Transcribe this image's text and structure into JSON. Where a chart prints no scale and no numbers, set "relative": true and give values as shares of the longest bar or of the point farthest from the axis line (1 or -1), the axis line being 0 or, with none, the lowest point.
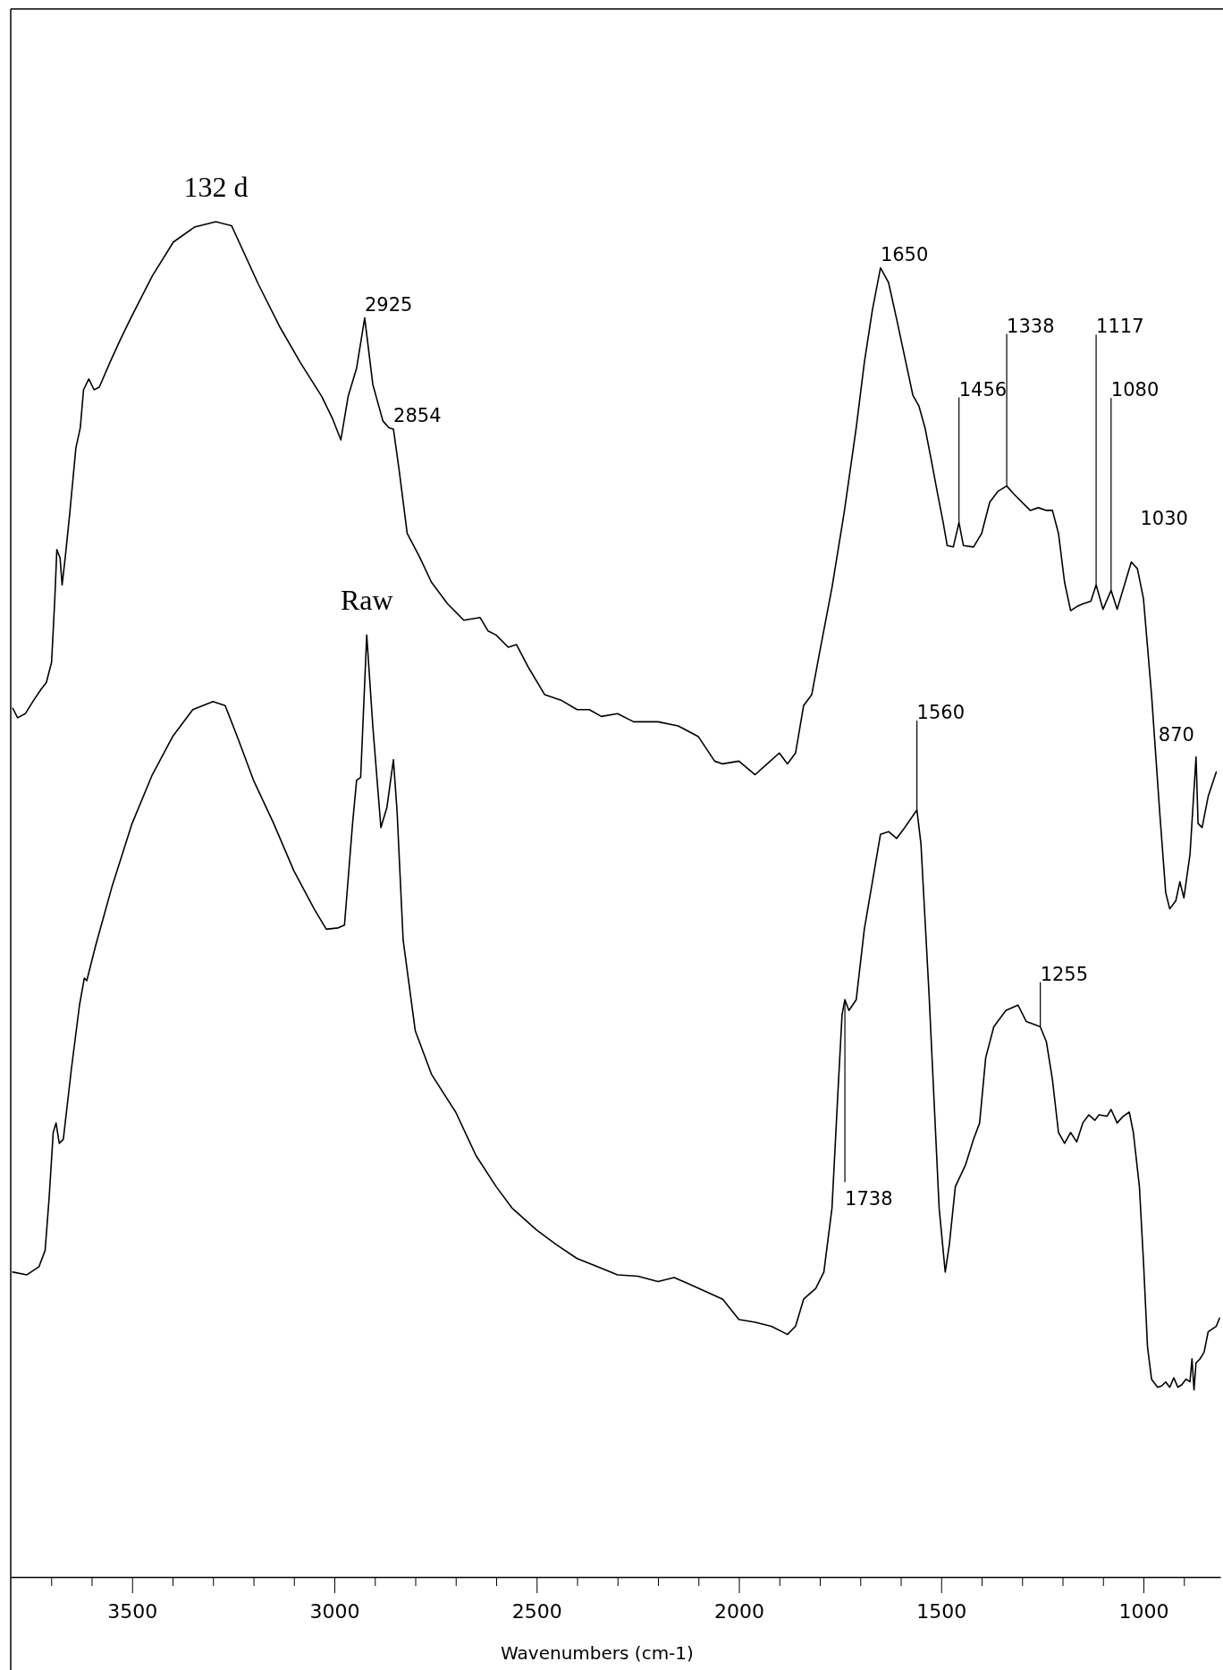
{
  "chart_data": {
    "type": "line",
    "relative": true,
    "xlabel": "Wavenumbers (cm-1)",
    "xlim": [
      3800,
      810
    ],
    "xticks": [
      {
        "value": 3700,
        "label": null
      },
      {
        "value": 3600,
        "label": null
      },
      3500,
      {
        "value": 3400,
        "label": null
      },
      {
        "value": 3300,
        "label": null
      },
      {
        "value": 3200,
        "label": null
      },
      {
        "value": 3100,
        "label": null
      },
      3000,
      {
        "value": 2900,
        "label": null
      },
      {
        "value": 2800,
        "label": null
      },
      {
        "value": 2700,
        "label": null
      },
      {
        "value": 2600,
        "label": null
      },
      2500,
      {
        "value": 2400,
        "label": null
      },
      {
        "value": 2300,
        "label": null
      },
      {
        "value": 2200,
        "label": null
      },
      {
        "value": 2100,
        "label": null
      },
      2000,
      {
        "value": 1900,
        "label": null
      },
      {
        "value": 1800,
        "label": null
      },
      {
        "value": 1700,
        "label": null
      },
      {
        "value": 1600,
        "label": null
      },
      1500,
      {
        "value": 1400,
        "label": null
      },
      {
        "value": 1300,
        "label": null
      },
      {
        "value": 1200,
        "label": null
      },
      {
        "value": 1100,
        "label": null
      },
      1000,
      {
        "value": 900,
        "label": null
      }
    ],
    "series": [
      {
        "name": "132 d",
        "color": "#000000",
        "x": [
          3795,
          3783,
          3764,
          3743,
          3725,
          3712,
          3699,
          3691,
          3686,
          3678,
          3673,
          3665,
          3654,
          3639,
          3628,
          3620,
          3607,
          3594,
          3581,
          3555,
          3529,
          3503,
          3450,
          3398,
          3346,
          3293,
          3254,
          3188,
          3136,
          3084,
          3031,
          3005,
          2984,
          2966,
          2945,
          2925,
          2905,
          2880,
          2865,
          2854,
          2840,
          2820,
          2790,
          2760,
          2720,
          2680,
          2640,
          2620,
          2600,
          2570,
          2550,
          2520,
          2480,
          2440,
          2400,
          2370,
          2340,
          2300,
          2260,
          2200,
          2150,
          2100,
          2060,
          2040,
          2000,
          1960,
          1930,
          1900,
          1880,
          1860,
          1840,
          1820,
          1800,
          1770,
          1740,
          1710,
          1690,
          1670,
          1650,
          1630,
          1610,
          1590,
          1570,
          1555,
          1540,
          1525,
          1510,
          1495,
          1485,
          1470,
          1456,
          1445,
          1420,
          1400,
          1380,
          1360,
          1338,
          1320,
          1300,
          1280,
          1260,
          1240,
          1225,
          1210,
          1195,
          1180,
          1165,
          1150,
          1130,
          1117,
          1100,
          1080,
          1065,
          1045,
          1030,
          1015,
          1000,
          980,
          960,
          945,
          935,
          920,
          910,
          900,
          885,
          870,
          865,
          855,
          840,
          820
        ],
        "values": [
          0.641,
          0.634,
          0.637,
          0.647,
          0.655,
          0.66,
          0.675,
          0.722,
          0.758,
          0.752,
          0.732,
          0.753,
          0.785,
          0.833,
          0.848,
          0.876,
          0.884,
          0.876,
          0.878,
          0.896,
          0.913,
          0.929,
          0.96,
          0.985,
          0.996,
          1,
          0.997,
          0.954,
          0.923,
          0.896,
          0.871,
          0.855,
          0.839,
          0.871,
          0.892,
          0.929,
          0.88,
          0.853,
          0.848,
          0.847,
          0.817,
          0.77,
          0.753,
          0.734,
          0.718,
          0.706,
          0.708,
          0.698,
          0.695,
          0.686,
          0.688,
          0.671,
          0.651,
          0.647,
          0.64,
          0.64,
          0.635,
          0.637,
          0.631,
          0.631,
          0.628,
          0.62,
          0.602,
          0.6,
          0.602,
          0.592,
          0.6,
          0.608,
          0.6,
          0.608,
          0.643,
          0.651,
          0.683,
          0.73,
          0.785,
          0.848,
          0.896,
          0.935,
          0.966,
          0.955,
          0.928,
          0.9,
          0.872,
          0.864,
          0.848,
          0.825,
          0.801,
          0.778,
          0.761,
          0.76,
          0.778,
          0.761,
          0.76,
          0.77,
          0.793,
          0.801,
          0.805,
          0.799,
          0.793,
          0.787,
          0.789,
          0.787,
          0.787,
          0.77,
          0.734,
          0.713,
          0.716,
          0.718,
          0.72,
          0.732,
          0.714,
          0.728,
          0.714,
          0.734,
          0.749,
          0.744,
          0.722,
          0.651,
          0.565,
          0.505,
          0.493,
          0.499,
          0.513,
          0.501,
          0.533,
          0.605,
          0.556,
          0.553,
          0.576,
          0.594
        ]
      },
      {
        "name": "Raw",
        "color": "#000000",
        "x": [
          3795,
          3760,
          3730,
          3715,
          3705,
          3695,
          3688,
          3680,
          3670,
          3650,
          3630,
          3618,
          3612,
          3590,
          3550,
          3500,
          3450,
          3400,
          3350,
          3300,
          3270,
          3240,
          3200,
          3150,
          3100,
          3050,
          3020,
          2990,
          2975,
          2955,
          2945,
          2935,
          2920,
          2905,
          2885,
          2870,
          2854,
          2845,
          2830,
          2800,
          2760,
          2700,
          2650,
          2600,
          2560,
          2500,
          2450,
          2400,
          2350,
          2300,
          2250,
          2200,
          2160,
          2100,
          2040,
          2000,
          1960,
          1920,
          1880,
          1860,
          1840,
          1810,
          1790,
          1770,
          1755,
          1745,
          1738,
          1728,
          1710,
          1690,
          1670,
          1650,
          1630,
          1610,
          1590,
          1560,
          1550,
          1530,
          1505,
          1490,
          1480,
          1465,
          1440,
          1420,
          1405,
          1390,
          1370,
          1340,
          1310,
          1290,
          1255,
          1240,
          1225,
          1210,
          1195,
          1180,
          1165,
          1150,
          1135,
          1120,
          1110,
          1090,
          1080,
          1065,
          1050,
          1035,
          1025,
          1010,
          1000,
          990,
          980,
          965,
          955,
          945,
          935,
          925,
          915,
          905,
          895,
          885,
          880,
          875,
          870,
          860,
          850,
          840,
          820,
          812
        ],
        "values": [
          0.225,
          0.223,
          0.229,
          0.241,
          0.28,
          0.328,
          0.335,
          0.32,
          0.323,
          0.375,
          0.422,
          0.442,
          0.44,
          0.466,
          0.509,
          0.556,
          0.592,
          0.62,
          0.64,
          0.646,
          0.643,
          0.62,
          0.588,
          0.556,
          0.521,
          0.493,
          0.478,
          0.479,
          0.481,
          0.556,
          0.588,
          0.59,
          0.695,
          0.628,
          0.553,
          0.568,
          0.603,
          0.565,
          0.47,
          0.403,
          0.371,
          0.343,
          0.311,
          0.288,
          0.272,
          0.256,
          0.245,
          0.235,
          0.229,
          0.223,
          0.222,
          0.218,
          0.221,
          0.213,
          0.205,
          0.19,
          0.188,
          0.185,
          0.179,
          0.185,
          0.205,
          0.213,
          0.225,
          0.272,
          0.359,
          0.415,
          0.426,
          0.418,
          0.426,
          0.478,
          0.513,
          0.548,
          0.55,
          0.545,
          0.553,
          0.566,
          0.541,
          0.43,
          0.272,
          0.225,
          0.245,
          0.288,
          0.304,
          0.323,
          0.335,
          0.383,
          0.406,
          0.418,
          0.422,
          0.41,
          0.406,
          0.395,
          0.367,
          0.328,
          0.32,
          0.328,
          0.321,
          0.335,
          0.341,
          0.337,
          0.341,
          0.34,
          0.345,
          0.335,
          0.34,
          0.343,
          0.328,
          0.288,
          0.233,
          0.17,
          0.146,
          0.14,
          0.141,
          0.144,
          0.14,
          0.147,
          0.14,
          0.142,
          0.146,
          0.144,
          0.161,
          0.138,
          0.158,
          0.161,
          0.166,
          0.181,
          0.185,
          0.191
        ]
      }
    ],
    "annotations": [
      {
        "text": "2925",
        "x": 2925,
        "y": 0.929
      },
      {
        "text": "2854",
        "x": 2854,
        "y": 0.847
      },
      {
        "text": "1650",
        "x": 1650,
        "y": 0.966
      },
      {
        "text": "1456",
        "x": 1456,
        "y": 0.778
      },
      {
        "text": "1338",
        "x": 1338,
        "y": 0.805
      },
      {
        "text": "1117",
        "x": 1117,
        "y": 0.732
      },
      {
        "text": "1080",
        "x": 1080,
        "y": 0.728
      },
      {
        "text": "1030",
        "x": 1030,
        "y": 0.749
      },
      {
        "text": "870",
        "x": 870,
        "y": 0.605
      },
      {
        "text": "1560",
        "x": 1560,
        "y": 0.566
      },
      {
        "text": "1255",
        "x": 1255,
        "y": 0.406
      },
      {
        "text": "1738",
        "x": 1738,
        "y": 0.426
      }
    ]
  }
}
